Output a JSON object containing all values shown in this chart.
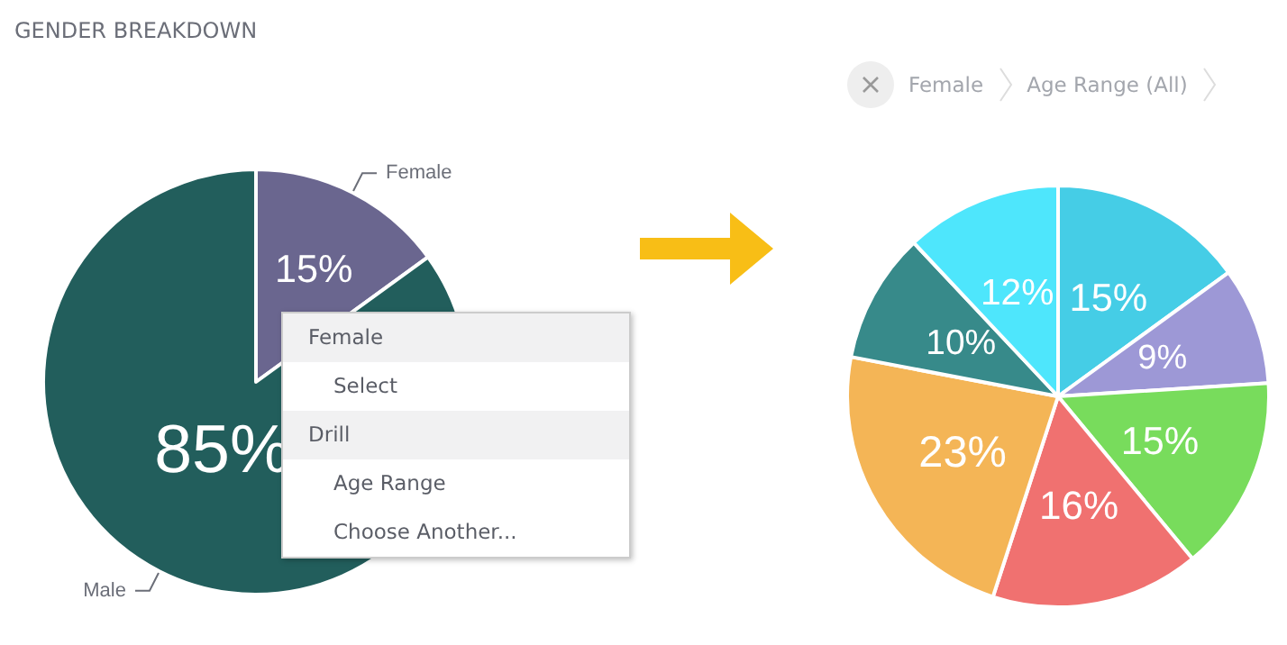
{
  "chart_data": [
    {
      "type": "pie",
      "title": "GENDER BREAKDOWN",
      "categories": [
        "Female",
        "Male"
      ],
      "values": [
        15,
        85
      ],
      "colors": [
        "#6a668f",
        "#225e5c"
      ],
      "value_labels": [
        "15%",
        "85%"
      ],
      "annotations": [
        "Female",
        "Select",
        "Drill",
        "Age Range",
        "Choose Another..."
      ]
    },
    {
      "type": "pie",
      "categories": [
        null,
        null,
        null,
        null,
        null,
        null,
        null
      ],
      "values": [
        15,
        9,
        15,
        16,
        23,
        10,
        12
      ],
      "colors": [
        "#45cde6",
        "#9d98d6",
        "#78dc5c",
        "#f07170",
        "#f4b556",
        "#378a8a",
        "#4ee6fc"
      ],
      "value_labels": [
        "15%",
        "9%",
        "15%",
        "16%",
        "23%",
        "10%",
        "12%"
      ],
      "annotations": [
        "Female",
        "Age Range (All)"
      ]
    }
  ]
}
